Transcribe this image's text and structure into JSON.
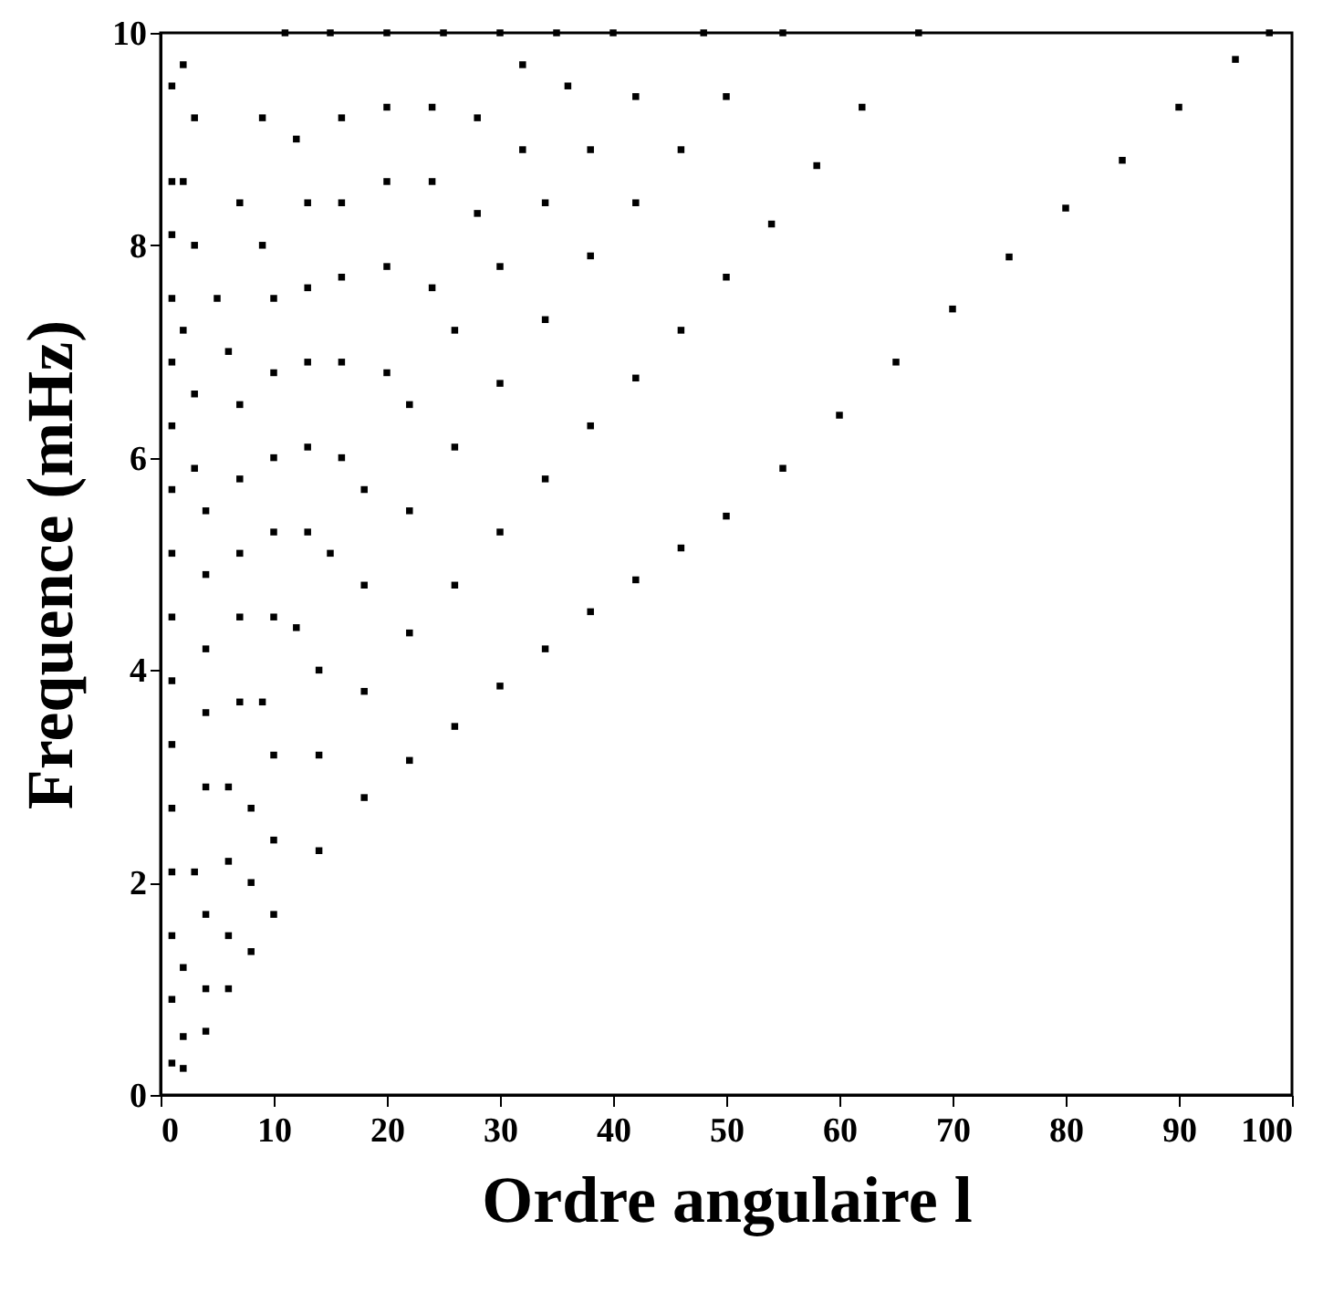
{
  "chart_data": {
    "type": "scatter",
    "xlabel": "Ordre angulaire l",
    "ylabel": "Frequence (mHz)",
    "xlim": [
      0,
      100
    ],
    "ylim": [
      0,
      10
    ],
    "xticks": [
      0,
      10,
      20,
      30,
      40,
      50,
      60,
      70,
      80,
      90,
      100
    ],
    "yticks": [
      0,
      2,
      4,
      6,
      8,
      10
    ],
    "grid": false,
    "marker": "square",
    "series": [
      {
        "color": "#000000",
        "x": [
          2,
          4,
          6,
          8,
          10,
          14,
          18,
          22,
          26,
          30,
          34,
          38,
          42,
          46,
          50,
          55,
          60,
          65,
          70,
          75,
          80,
          85,
          90,
          95,
          98
        ],
        "values": [
          0.25,
          0.6,
          1.0,
          1.35,
          1.7,
          2.3,
          2.8,
          3.15,
          3.47,
          3.85,
          4.2,
          4.55,
          4.85,
          5.15,
          5.45,
          5.9,
          6.4,
          6.9,
          7.4,
          7.89,
          8.35,
          8.8,
          9.3,
          9.75,
          10
        ]
      },
      {
        "color": "#000000",
        "x": [
          1,
          2,
          4,
          6,
          8,
          10,
          14,
          18,
          22,
          26,
          30,
          34,
          38,
          42,
          46,
          50,
          54,
          58,
          62,
          67
        ],
        "values": [
          0.3,
          0.55,
          1.0,
          1.5,
          2.0,
          2.4,
          3.2,
          3.8,
          4.35,
          4.8,
          5.3,
          5.8,
          6.3,
          6.75,
          7.2,
          7.7,
          8.2,
          8.75,
          9.3,
          10
        ]
      },
      {
        "color": "#000000",
        "x": [
          1,
          2,
          4,
          6,
          8,
          10,
          14,
          18,
          22,
          26,
          30,
          34,
          38,
          42,
          46,
          50,
          55
        ],
        "values": [
          0.9,
          1.2,
          1.7,
          2.2,
          2.7,
          3.2,
          4.0,
          4.8,
          5.5,
          6.1,
          6.7,
          7.3,
          7.9,
          8.4,
          8.9,
          9.4,
          10
        ]
      },
      {
        "color": "#000000",
        "x": [
          1,
          3,
          6,
          9,
          12,
          15,
          18,
          22,
          26,
          30,
          34,
          38,
          42,
          48
        ],
        "values": [
          1.5,
          2.1,
          2.9,
          3.7,
          4.4,
          5.1,
          5.7,
          6.5,
          7.2,
          7.8,
          8.4,
          8.9,
          9.4,
          10
        ]
      },
      {
        "color": "#000000",
        "x": [
          1,
          4,
          7,
          10,
          13,
          16,
          20,
          24,
          28,
          32,
          36,
          40
        ],
        "values": [
          2.1,
          2.9,
          3.7,
          4.5,
          5.3,
          6.0,
          6.8,
          7.6,
          8.3,
          8.9,
          9.5,
          10
        ]
      },
      {
        "color": "#000000",
        "x": [
          1,
          4,
          7,
          10,
          13,
          16,
          20,
          24,
          28,
          32,
          35
        ],
        "values": [
          2.7,
          3.6,
          4.5,
          5.3,
          6.1,
          6.9,
          7.8,
          8.6,
          9.2,
          9.7,
          10
        ]
      },
      {
        "color": "#000000",
        "x": [
          1,
          4,
          7,
          10,
          13,
          16,
          20,
          24,
          30
        ],
        "values": [
          3.3,
          4.2,
          5.1,
          6.0,
          6.9,
          7.7,
          8.6,
          9.3,
          10
        ]
      },
      {
        "color": "#000000",
        "x": [
          1,
          4,
          7,
          10,
          13,
          16,
          20,
          25
        ],
        "values": [
          3.9,
          4.9,
          5.8,
          6.8,
          7.6,
          8.4,
          9.3,
          10
        ]
      },
      {
        "color": "#000000",
        "x": [
          1,
          4,
          7,
          10,
          13,
          16,
          20
        ],
        "values": [
          4.5,
          5.5,
          6.5,
          7.5,
          8.4,
          9.2,
          10
        ]
      },
      {
        "color": "#000000",
        "x": [
          1,
          3,
          6,
          9,
          12,
          15
        ],
        "values": [
          5.1,
          5.9,
          7.0,
          8.0,
          9.0,
          10
        ]
      },
      {
        "color": "#000000",
        "x": [
          1,
          3,
          5,
          7,
          9,
          11
        ],
        "values": [
          5.7,
          6.6,
          7.5,
          8.4,
          9.2,
          10
        ]
      },
      {
        "color": "#000000",
        "x": [
          1,
          1,
          1,
          1,
          1,
          1,
          2,
          2,
          2,
          3,
          3
        ],
        "values": [
          6.3,
          6.9,
          7.5,
          8.1,
          8.6,
          9.5,
          7.2,
          8.6,
          9.7,
          8.0,
          9.2
        ]
      }
    ]
  }
}
